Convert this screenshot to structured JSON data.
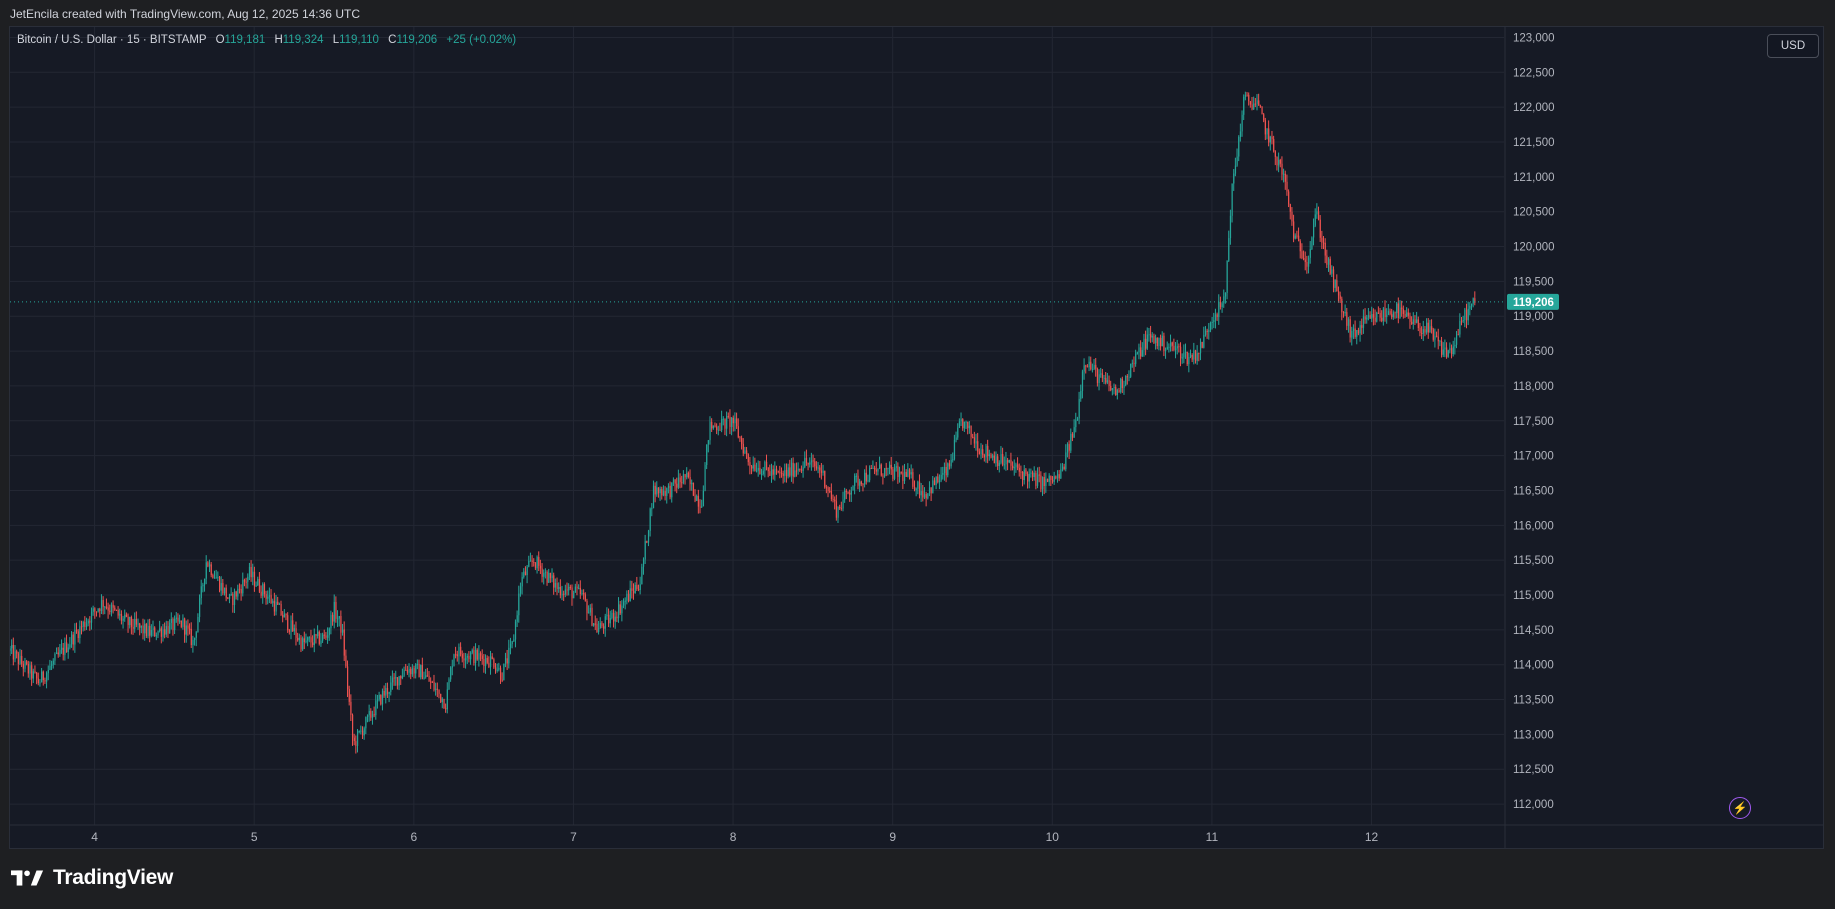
{
  "attribution": "JetEncila created with TradingView.com, Aug 12, 2025 14:36 UTC",
  "legend": {
    "symbol": "Bitcoin / U.S. Dollar · 15 · BITSTAMP",
    "o_label": "O",
    "open": "119,181",
    "h_label": "H",
    "high": "119,324",
    "l_label": "L",
    "low": "119,110",
    "c_label": "C",
    "close": "119,206",
    "change": "+25 (+0.02%)"
  },
  "currency_button": "USD",
  "last_price_label": "119,206",
  "brand": "TradingView",
  "icons": {
    "brand": "tradingview-logo-icon",
    "assistant": "sparkle-bolt-icon"
  },
  "colors": {
    "up": "#26a69a",
    "down": "#ef5350",
    "background": "#161a25",
    "grid": "#232733",
    "price_line": "#26a69a",
    "accent": "#a05af0"
  },
  "chart_data": {
    "type": "candlestick",
    "interval": "15",
    "ylim": [
      111700,
      123150
    ],
    "y_ticks": [
      112000,
      112500,
      113000,
      113500,
      114000,
      114500,
      115000,
      115500,
      116000,
      116500,
      117000,
      117500,
      118000,
      118500,
      119000,
      119500,
      120000,
      120500,
      121000,
      121500,
      122000,
      122500,
      123000
    ],
    "y_tick_labels": [
      "112,000",
      "112,500",
      "113,000",
      "113,500",
      "114,000",
      "114,500",
      "115,000",
      "115,500",
      "116,000",
      "116,500",
      "117,000",
      "117,500",
      "118,000",
      "118,500",
      "119,000",
      "119,500",
      "120,000",
      "120,500",
      "121,000",
      "121,500",
      "122,000",
      "122,500",
      "123,000"
    ],
    "x_ticks": [
      4,
      5,
      6,
      7,
      8,
      9,
      10,
      11,
      12
    ],
    "x_tick_labels": [
      "4",
      "5",
      "6",
      "7",
      "8",
      "9",
      "10",
      "11",
      "12"
    ],
    "x_range_days": [
      3.47,
      12.83
    ],
    "last_price": 119206,
    "close_path": [
      [
        3.47,
        114200
      ],
      [
        3.65,
        113750
      ],
      [
        3.9,
        114500
      ],
      [
        4.05,
        114900
      ],
      [
        4.2,
        114600
      ],
      [
        4.35,
        114450
      ],
      [
        4.55,
        114600
      ],
      [
        4.62,
        114300
      ],
      [
        4.7,
        115500
      ],
      [
        4.85,
        114900
      ],
      [
        4.97,
        115300
      ],
      [
        5.15,
        114800
      ],
      [
        5.3,
        114300
      ],
      [
        5.45,
        114400
      ],
      [
        5.5,
        114800
      ],
      [
        5.55,
        114500
      ],
      [
        5.62,
        112850
      ],
      [
        5.8,
        113550
      ],
      [
        5.95,
        113950
      ],
      [
        6.05,
        113900
      ],
      [
        6.2,
        113450
      ],
      [
        6.25,
        114200
      ],
      [
        6.5,
        114050
      ],
      [
        6.55,
        113850
      ],
      [
        6.62,
        114300
      ],
      [
        6.67,
        115200
      ],
      [
        6.75,
        115500
      ],
      [
        6.9,
        115100
      ],
      [
        7.05,
        115000
      ],
      [
        7.15,
        114500
      ],
      [
        7.25,
        114700
      ],
      [
        7.35,
        115000
      ],
      [
        7.42,
        115200
      ],
      [
        7.5,
        116500
      ],
      [
        7.6,
        116500
      ],
      [
        7.7,
        116700
      ],
      [
        7.8,
        116300
      ],
      [
        7.85,
        117400
      ],
      [
        8.0,
        117500
      ],
      [
        8.1,
        116900
      ],
      [
        8.3,
        116700
      ],
      [
        8.45,
        116900
      ],
      [
        8.55,
        116800
      ],
      [
        8.65,
        116200
      ],
      [
        8.75,
        116600
      ],
      [
        8.9,
        116800
      ],
      [
        9.1,
        116700
      ],
      [
        9.2,
        116450
      ],
      [
        9.35,
        116800
      ],
      [
        9.43,
        117500
      ],
      [
        9.55,
        117100
      ],
      [
        9.7,
        116900
      ],
      [
        9.85,
        116700
      ],
      [
        9.95,
        116600
      ],
      [
        10.05,
        116700
      ],
      [
        10.15,
        117500
      ],
      [
        10.2,
        118400
      ],
      [
        10.3,
        118100
      ],
      [
        10.4,
        117900
      ],
      [
        10.5,
        118300
      ],
      [
        10.6,
        118700
      ],
      [
        10.7,
        118600
      ],
      [
        10.8,
        118500
      ],
      [
        10.85,
        118400
      ],
      [
        10.92,
        118500
      ],
      [
        11.0,
        119000
      ],
      [
        11.08,
        119200
      ],
      [
        11.12,
        120700
      ],
      [
        11.2,
        122100
      ],
      [
        11.28,
        122050
      ],
      [
        11.35,
        121600
      ],
      [
        11.45,
        121000
      ],
      [
        11.52,
        120100
      ],
      [
        11.6,
        119800
      ],
      [
        11.65,
        120500
      ],
      [
        11.72,
        119800
      ],
      [
        11.8,
        119200
      ],
      [
        11.88,
        118700
      ],
      [
        11.95,
        118900
      ],
      [
        12.05,
        119000
      ],
      [
        12.15,
        119100
      ],
      [
        12.25,
        118900
      ],
      [
        12.35,
        118800
      ],
      [
        12.45,
        118500
      ],
      [
        12.5,
        118500
      ],
      [
        12.58,
        119000
      ],
      [
        12.65,
        119206
      ]
    ]
  }
}
